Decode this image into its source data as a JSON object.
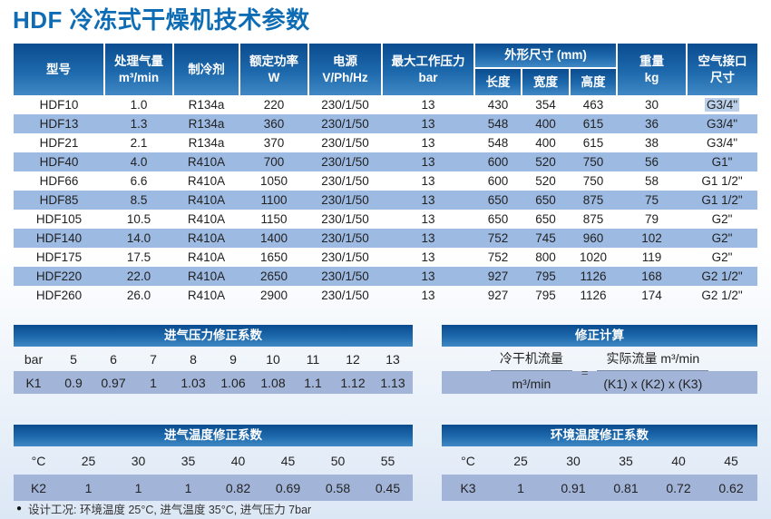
{
  "page": {
    "title": "HDF 冷冻式干燥机技术参数",
    "footnote_bullet": "●",
    "footnote": "设计工况: 环境温度 25°C, 进气温度 35°C, 进气压力 7bar"
  },
  "colors": {
    "title_blue": "#0e6cb4",
    "header_gradient_top": "#0a4c8f",
    "header_gradient_bottom": "#4189c5",
    "alt_row_blue": "#9dbae3",
    "factor_row_blue": "#a2b5d9",
    "selection_highlight": "#bad0ea"
  },
  "main_table": {
    "headers": {
      "model": "型号",
      "capacity_line1": "处理气量",
      "capacity_line2": "m³/min",
      "refrigerant": "制冷剂",
      "power_line1": "额定功率",
      "power_line2": "W",
      "supply_line1": "电源",
      "supply_line2": "V/Ph/Hz",
      "pressure_line1": "最大工作压力",
      "pressure_line2": "bar",
      "dimensions": "外形尺寸 (mm)",
      "length": "长度",
      "width": "宽度",
      "height": "高度",
      "weight_line1": "重量",
      "weight_line2": "kg",
      "connection_line1": "空气接口",
      "connection_line2": "尺寸"
    },
    "rows": [
      [
        "HDF10",
        "1.0",
        "R134a",
        "220",
        "230/1/50",
        "13",
        "430",
        "354",
        "463",
        "30",
        "G3/4\""
      ],
      [
        "HDF13",
        "1.3",
        "R134a",
        "360",
        "230/1/50",
        "13",
        "548",
        "400",
        "615",
        "36",
        "G3/4\""
      ],
      [
        "HDF21",
        "2.1",
        "R134a",
        "370",
        "230/1/50",
        "13",
        "548",
        "400",
        "615",
        "38",
        "G3/4\""
      ],
      [
        "HDF40",
        "4.0",
        "R410A",
        "700",
        "230/1/50",
        "13",
        "600",
        "520",
        "750",
        "56",
        "G1\""
      ],
      [
        "HDF66",
        "6.6",
        "R410A",
        "1050",
        "230/1/50",
        "13",
        "600",
        "520",
        "750",
        "58",
        "G1 1/2\""
      ],
      [
        "HDF85",
        "8.5",
        "R410A",
        "1100",
        "230/1/50",
        "13",
        "650",
        "650",
        "875",
        "75",
        "G1 1/2\""
      ],
      [
        "HDF105",
        "10.5",
        "R410A",
        "1150",
        "230/1/50",
        "13",
        "650",
        "650",
        "875",
        "79",
        "G2\""
      ],
      [
        "HDF140",
        "14.0",
        "R410A",
        "1400",
        "230/1/50",
        "13",
        "752",
        "745",
        "960",
        "102",
        "G2\""
      ],
      [
        "HDF175",
        "17.5",
        "R410A",
        "1650",
        "230/1/50",
        "13",
        "752",
        "800",
        "1020",
        "119",
        "G2\""
      ],
      [
        "HDF220",
        "22.0",
        "R410A",
        "2650",
        "230/1/50",
        "13",
        "927",
        "795",
        "1126",
        "168",
        "G2 1/2\""
      ],
      [
        "HDF260",
        "26.0",
        "R410A",
        "2900",
        "230/1/50",
        "13",
        "927",
        "795",
        "1126",
        "174",
        "G2 1/2\""
      ]
    ],
    "highlighted_cell": {
      "row": 0,
      "col": 10
    }
  },
  "pressure_correction": {
    "title": "进气压力修正系数",
    "unit_row": [
      "bar",
      "5",
      "6",
      "7",
      "8",
      "9",
      "10",
      "11",
      "12",
      "13"
    ],
    "factor_row": [
      "K1",
      "0.9",
      "0.97",
      "1",
      "1.03",
      "1.06",
      "1.08",
      "1.1",
      "1.12",
      "1.13"
    ]
  },
  "correction_formula": {
    "title": "修正计算",
    "left_numerator": "冷干机流量",
    "left_denominator": "m³/min",
    "equals": "=",
    "right_numerator": "实际流量 m³/min",
    "right_denominator": "(K1) x (K2) x (K3)"
  },
  "inlet_temp_correction": {
    "title": "进气温度修正系数",
    "unit_row": [
      "°C",
      "25",
      "30",
      "35",
      "40",
      "45",
      "50",
      "55"
    ],
    "factor_row": [
      "K2",
      "1",
      "1",
      "1",
      "0.82",
      "0.69",
      "0.58",
      "0.45"
    ]
  },
  "ambient_temp_correction": {
    "title": "环境温度修正系数",
    "unit_row": [
      "°C",
      "25",
      "30",
      "35",
      "40",
      "45"
    ],
    "factor_row": [
      "K3",
      "1",
      "0.91",
      "0.81",
      "0.72",
      "0.62"
    ]
  }
}
